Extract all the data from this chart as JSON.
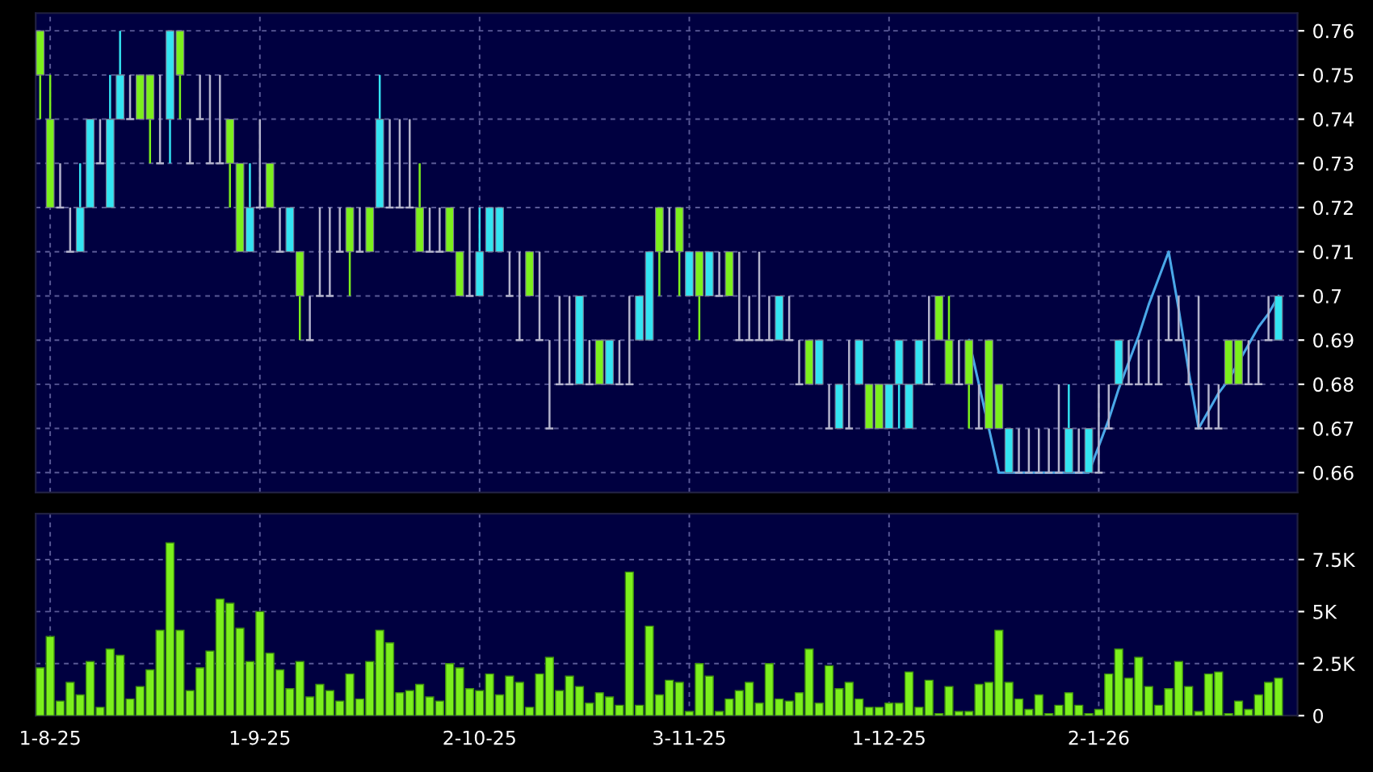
{
  "chart_data": [
    {
      "type": "candlestick",
      "categories": [
        null,
        null,
        null,
        null,
        null,
        null,
        null,
        null,
        null,
        null,
        null,
        null,
        null,
        null,
        null,
        null,
        null,
        null,
        null,
        null,
        null,
        null,
        null,
        null,
        null,
        null,
        null,
        null,
        null,
        null,
        null,
        null,
        null,
        null,
        null,
        null,
        null,
        null,
        null,
        null,
        null,
        null,
        null,
        null,
        null,
        null,
        null,
        null,
        null,
        null,
        null,
        null,
        null,
        null,
        null,
        null,
        null,
        null,
        null,
        null,
        null,
        null,
        null,
        null,
        null,
        null,
        null,
        null,
        null,
        null,
        null,
        null,
        null,
        null,
        null,
        null,
        null,
        null,
        null,
        null,
        null,
        null,
        null,
        null,
        null,
        null,
        null,
        null,
        null,
        null,
        null,
        null,
        null,
        null,
        null,
        null,
        null,
        null,
        null,
        null,
        null,
        null,
        null,
        null,
        null,
        null,
        null,
        null,
        null,
        null,
        null,
        null,
        null,
        null,
        null,
        null,
        null,
        null,
        null,
        null,
        null,
        null,
        null,
        null,
        null
      ],
      "ohlc": [
        [
          0.75,
          0.76,
          0.74,
          0.76
        ],
        [
          0.72,
          0.75,
          0.72,
          0.74
        ],
        [
          0.72,
          0.73,
          0.72,
          0.72
        ],
        [
          0.71,
          0.72,
          0.71,
          0.71
        ],
        [
          0.72,
          0.73,
          0.71,
          0.71
        ],
        [
          0.74,
          0.74,
          0.72,
          0.72
        ],
        [
          0.73,
          0.74,
          0.73,
          0.73
        ],
        [
          0.74,
          0.75,
          0.72,
          0.72
        ],
        [
          0.75,
          0.76,
          0.74,
          0.74
        ],
        [
          0.74,
          0.75,
          0.74,
          0.74
        ],
        [
          0.74,
          0.75,
          0.74,
          0.75
        ],
        [
          0.74,
          0.75,
          0.73,
          0.75
        ],
        [
          0.73,
          0.75,
          0.73,
          0.73
        ],
        [
          0.76,
          0.76,
          0.73,
          0.74
        ],
        [
          0.75,
          0.76,
          0.74,
          0.76
        ],
        [
          0.73,
          0.74,
          0.73,
          0.73
        ],
        [
          0.74,
          0.75,
          0.74,
          0.74
        ],
        [
          0.73,
          0.75,
          0.73,
          0.73
        ],
        [
          0.73,
          0.75,
          0.73,
          0.73
        ],
        [
          0.73,
          0.74,
          0.72,
          0.74
        ],
        [
          0.71,
          0.73,
          0.71,
          0.73
        ],
        [
          0.72,
          0.73,
          0.71,
          0.71
        ],
        [
          0.72,
          0.74,
          0.72,
          0.72
        ],
        [
          0.72,
          0.73,
          0.72,
          0.73
        ],
        [
          0.71,
          0.72,
          0.71,
          0.71
        ],
        [
          0.72,
          0.72,
          0.71,
          0.71
        ],
        [
          0.7,
          0.71,
          0.69,
          0.71
        ],
        [
          0.69,
          0.7,
          0.69,
          0.69
        ],
        [
          0.7,
          0.72,
          0.7,
          0.7
        ],
        [
          0.7,
          0.72,
          0.7,
          0.7
        ],
        [
          0.71,
          0.72,
          0.71,
          0.71
        ],
        [
          0.71,
          0.72,
          0.7,
          0.72
        ],
        [
          0.71,
          0.72,
          0.71,
          0.71
        ],
        [
          0.71,
          0.72,
          0.71,
          0.72
        ],
        [
          0.74,
          0.75,
          0.72,
          0.72
        ],
        [
          0.72,
          0.74,
          0.72,
          0.72
        ],
        [
          0.72,
          0.74,
          0.72,
          0.72
        ],
        [
          0.72,
          0.74,
          0.72,
          0.72
        ],
        [
          0.71,
          0.73,
          0.71,
          0.72
        ],
        [
          0.71,
          0.72,
          0.71,
          0.71
        ],
        [
          0.71,
          0.72,
          0.71,
          0.71
        ],
        [
          0.71,
          0.72,
          0.71,
          0.72
        ],
        [
          0.7,
          0.71,
          0.7,
          0.71
        ],
        [
          0.7,
          0.72,
          0.7,
          0.7
        ],
        [
          0.71,
          0.72,
          0.7,
          0.7
        ],
        [
          0.72,
          0.72,
          0.71,
          0.71
        ],
        [
          0.72,
          0.72,
          0.71,
          0.71
        ],
        [
          0.7,
          0.71,
          0.7,
          0.7
        ],
        [
          0.69,
          0.71,
          0.69,
          0.69
        ],
        [
          0.7,
          0.71,
          0.7,
          0.71
        ],
        [
          0.69,
          0.71,
          0.69,
          0.69
        ],
        [
          0.67,
          0.69,
          0.67,
          0.67
        ],
        [
          0.68,
          0.7,
          0.68,
          0.68
        ],
        [
          0.68,
          0.7,
          0.68,
          0.68
        ],
        [
          0.7,
          0.7,
          0.68,
          0.68
        ],
        [
          0.68,
          0.69,
          0.68,
          0.68
        ],
        [
          0.68,
          0.69,
          0.68,
          0.69
        ],
        [
          0.69,
          0.69,
          0.68,
          0.68
        ],
        [
          0.68,
          0.69,
          0.68,
          0.68
        ],
        [
          0.68,
          0.7,
          0.68,
          0.68
        ],
        [
          0.7,
          0.7,
          0.69,
          0.69
        ],
        [
          0.71,
          0.71,
          0.69,
          0.69
        ],
        [
          0.71,
          0.72,
          0.7,
          0.72
        ],
        [
          0.71,
          0.72,
          0.71,
          0.71
        ],
        [
          0.71,
          0.72,
          0.7,
          0.72
        ],
        [
          0.71,
          0.71,
          0.7,
          0.7
        ],
        [
          0.7,
          0.71,
          0.69,
          0.71
        ],
        [
          0.71,
          0.71,
          0.7,
          0.7
        ],
        [
          0.7,
          0.71,
          0.7,
          0.7
        ],
        [
          0.7,
          0.71,
          0.7,
          0.71
        ],
        [
          0.69,
          0.71,
          0.69,
          0.69
        ],
        [
          0.69,
          0.7,
          0.69,
          0.69
        ],
        [
          0.69,
          0.71,
          0.69,
          0.69
        ],
        [
          0.69,
          0.7,
          0.69,
          0.69
        ],
        [
          0.7,
          0.7,
          0.69,
          0.69
        ],
        [
          0.69,
          0.7,
          0.69,
          0.69
        ],
        [
          0.68,
          0.69,
          0.68,
          0.68
        ],
        [
          0.68,
          0.69,
          0.68,
          0.69
        ],
        [
          0.69,
          0.69,
          0.68,
          0.68
        ],
        [
          0.67,
          0.68,
          0.67,
          0.67
        ],
        [
          0.68,
          0.68,
          0.67,
          0.67
        ],
        [
          0.67,
          0.69,
          0.67,
          0.67
        ],
        [
          0.69,
          0.69,
          0.68,
          0.68
        ],
        [
          0.67,
          0.68,
          0.67,
          0.68
        ],
        [
          0.67,
          0.68,
          0.67,
          0.68
        ],
        [
          0.68,
          0.68,
          0.67,
          0.67
        ],
        [
          0.69,
          0.69,
          0.67,
          0.68
        ],
        [
          0.68,
          0.68,
          0.67,
          0.67
        ],
        [
          0.69,
          0.69,
          0.68,
          0.68
        ],
        [
          0.68,
          0.7,
          0.68,
          0.68
        ],
        [
          0.69,
          0.7,
          0.69,
          0.7
        ],
        [
          0.68,
          0.7,
          0.68,
          0.69
        ],
        [
          0.68,
          0.69,
          0.68,
          0.68
        ],
        [
          0.68,
          0.69,
          0.67,
          0.69
        ],
        [
          0.67,
          0.68,
          0.67,
          0.67
        ],
        [
          0.67,
          0.69,
          0.67,
          0.69
        ],
        [
          0.67,
          0.68,
          0.67,
          0.68
        ],
        [
          0.67,
          0.67,
          0.66,
          0.66
        ],
        [
          0.66,
          0.67,
          0.66,
          0.66
        ],
        [
          0.66,
          0.67,
          0.66,
          0.66
        ],
        [
          0.66,
          0.67,
          0.66,
          0.66
        ],
        [
          0.66,
          0.67,
          0.66,
          0.66
        ],
        [
          0.66,
          0.68,
          0.66,
          0.66
        ],
        [
          0.67,
          0.68,
          0.66,
          0.66
        ],
        [
          0.66,
          0.67,
          0.66,
          0.66
        ],
        [
          0.67,
          0.67,
          0.66,
          0.66
        ],
        [
          0.66,
          0.68,
          0.66,
          0.66
        ],
        [
          0.67,
          0.68,
          0.67,
          0.67
        ],
        [
          0.69,
          0.69,
          0.68,
          0.68
        ],
        [
          0.68,
          0.69,
          0.68,
          0.68
        ],
        [
          0.68,
          0.69,
          0.68,
          0.68
        ],
        [
          0.68,
          0.69,
          0.68,
          0.68
        ],
        [
          0.68,
          0.7,
          0.68,
          0.68
        ],
        [
          0.69,
          0.7,
          0.69,
          0.69
        ],
        [
          0.69,
          0.7,
          0.69,
          0.69
        ],
        [
          0.68,
          0.69,
          0.68,
          0.68
        ],
        [
          0.67,
          0.7,
          0.67,
          0.67
        ],
        [
          0.67,
          0.68,
          0.67,
          0.67
        ],
        [
          0.67,
          0.68,
          0.67,
          0.67
        ],
        [
          0.68,
          0.69,
          0.68,
          0.69
        ],
        [
          0.68,
          0.69,
          0.68,
          0.69
        ],
        [
          0.68,
          0.69,
          0.68,
          0.68
        ],
        [
          0.68,
          0.69,
          0.68,
          0.68
        ],
        [
          0.69,
          0.7,
          0.69,
          0.69
        ],
        [
          0.7,
          0.7,
          0.69,
          0.69
        ]
      ],
      "colors": [
        "#7cf01c",
        "#7cf01c",
        "#b4b4cc",
        "#b4b4cc",
        "#33e4f2",
        "#33e4f2",
        "#b4b4cc",
        "#33e4f2",
        "#33e4f2",
        "#b4b4cc",
        "#7cf01c",
        "#7cf01c",
        "#b4b4cc",
        "#33e4f2",
        "#7cf01c",
        "#b4b4cc",
        "#b4b4cc",
        "#b4b4cc",
        "#b4b4cc",
        "#7cf01c",
        "#7cf01c",
        "#33e4f2",
        "#b4b4cc",
        "#7cf01c",
        "#b4b4cc",
        "#33e4f2",
        "#7cf01c",
        "#b4b4cc",
        "#b4b4cc",
        "#b4b4cc",
        "#b4b4cc",
        "#7cf01c",
        "#b4b4cc",
        "#7cf01c",
        "#33e4f2",
        "#b4b4cc",
        "#b4b4cc",
        "#b4b4cc",
        "#7cf01c",
        "#b4b4cc",
        "#b4b4cc",
        "#7cf01c",
        "#7cf01c",
        "#b4b4cc",
        "#33e4f2",
        "#33e4f2",
        "#33e4f2",
        "#b4b4cc",
        "#b4b4cc",
        "#7cf01c",
        "#b4b4cc",
        "#b4b4cc",
        "#b4b4cc",
        "#b4b4cc",
        "#33e4f2",
        "#b4b4cc",
        "#7cf01c",
        "#33e4f2",
        "#b4b4cc",
        "#b4b4cc",
        "#33e4f2",
        "#33e4f2",
        "#7cf01c",
        "#b4b4cc",
        "#7cf01c",
        "#33e4f2",
        "#7cf01c",
        "#33e4f2",
        "#b4b4cc",
        "#7cf01c",
        "#b4b4cc",
        "#b4b4cc",
        "#b4b4cc",
        "#b4b4cc",
        "#33e4f2",
        "#b4b4cc",
        "#b4b4cc",
        "#7cf01c",
        "#33e4f2",
        "#b4b4cc",
        "#33e4f2",
        "#b4b4cc",
        "#33e4f2",
        "#7cf01c",
        "#7cf01c",
        "#33e4f2",
        "#33e4f2",
        "#33e4f2",
        "#33e4f2",
        "#b4b4cc",
        "#7cf01c",
        "#7cf01c",
        "#b4b4cc",
        "#7cf01c",
        "#b4b4cc",
        "#7cf01c",
        "#7cf01c",
        "#33e4f2",
        "#b4b4cc",
        "#b4b4cc",
        "#b4b4cc",
        "#b4b4cc",
        "#b4b4cc",
        "#33e4f2",
        "#b4b4cc",
        "#33e4f2",
        "#b4b4cc",
        "#b4b4cc",
        "#33e4f2",
        "#b4b4cc",
        "#b4b4cc",
        "#b4b4cc",
        "#b4b4cc",
        "#b4b4cc",
        "#b4b4cc",
        "#b4b4cc",
        "#b4b4cc",
        "#b4b4cc",
        "#b4b4cc",
        "#7cf01c",
        "#7cf01c",
        "#b4b4cc",
        "#b4b4cc",
        "#b4b4cc",
        "#33e4f2"
      ],
      "series": [
        {
          "type": "line",
          "color": "#4aa8e8",
          "values": [
            null,
            null,
            null,
            null,
            null,
            null,
            null,
            null,
            null,
            null,
            null,
            null,
            null,
            null,
            null,
            null,
            null,
            null,
            null,
            null,
            null,
            null,
            null,
            null,
            null,
            null,
            null,
            null,
            null,
            null,
            null,
            null,
            null,
            null,
            null,
            null,
            null,
            null,
            null,
            null,
            null,
            null,
            null,
            null,
            null,
            null,
            null,
            null,
            null,
            null,
            null,
            null,
            null,
            null,
            null,
            null,
            null,
            null,
            null,
            null,
            null,
            null,
            null,
            null,
            null,
            null,
            null,
            null,
            null,
            null,
            null,
            null,
            null,
            null,
            null,
            null,
            null,
            null,
            null,
            null,
            null,
            null,
            null,
            null,
            null,
            null,
            null,
            null,
            null,
            null,
            null,
            null,
            null,
            0.69,
            0.68,
            0.67,
            0.66,
            0.66,
            0.66,
            0.66,
            0.66,
            0.66,
            0.66,
            0.66,
            0.66,
            0.66,
            0.666,
            0.672,
            0.679,
            0.685,
            0.691,
            0.698,
            0.704,
            0.71,
            0.697,
            0.683,
            0.67,
            0.674,
            0.678,
            0.681,
            0.685,
            0.689,
            0.693,
            0.696,
            0.7
          ]
        }
      ],
      "ylim": [
        0.6555,
        0.764
      ],
      "yticks": [
        0.66,
        0.67,
        0.68,
        0.69,
        0.7,
        0.71,
        0.72,
        0.73,
        0.74,
        0.75,
        0.76
      ],
      "grid": true,
      "tick_labels": "y"
    },
    {
      "type": "bar",
      "categories": [
        null,
        "1-8-25",
        null,
        null,
        null,
        null,
        null,
        null,
        null,
        null,
        null,
        null,
        null,
        null,
        null,
        null,
        null,
        null,
        null,
        null,
        null,
        null,
        "1-9-25",
        null,
        null,
        null,
        null,
        null,
        null,
        null,
        null,
        null,
        null,
        null,
        null,
        null,
        null,
        null,
        null,
        null,
        null,
        null,
        null,
        null,
        "2-10-25",
        null,
        null,
        null,
        null,
        null,
        null,
        null,
        null,
        null,
        null,
        null,
        null,
        null,
        null,
        null,
        null,
        null,
        null,
        null,
        null,
        "3-11-25",
        null,
        null,
        null,
        null,
        null,
        null,
        null,
        null,
        null,
        null,
        null,
        null,
        null,
        null,
        null,
        null,
        null,
        null,
        null,
        "1-12-25",
        null,
        null,
        null,
        null,
        null,
        null,
        null,
        null,
        null,
        null,
        null,
        null,
        null,
        null,
        null,
        null,
        null,
        null,
        null,
        null,
        "2-1-26",
        null,
        null,
        null,
        null,
        null,
        null,
        null,
        null,
        null,
        null,
        null,
        null,
        null,
        null,
        null,
        null,
        null,
        null
      ],
      "values": [
        2300,
        3800,
        700,
        1600,
        1000,
        2600,
        400,
        3200,
        2900,
        800,
        1400,
        2200,
        4100,
        8300,
        4100,
        1200,
        2300,
        3100,
        5600,
        5400,
        4200,
        2600,
        5000,
        3000,
        2200,
        1300,
        2600,
        900,
        1500,
        1200,
        700,
        2000,
        800,
        2600,
        4100,
        3500,
        1100,
        1200,
        1500,
        900,
        700,
        2500,
        2300,
        1300,
        1200,
        2000,
        1000,
        1900,
        1600,
        400,
        2000,
        2800,
        1200,
        1900,
        1400,
        600,
        1100,
        900,
        500,
        6900,
        500,
        4300,
        1000,
        1700,
        1600,
        200,
        2500,
        1900,
        200,
        800,
        1200,
        1600,
        600,
        2500,
        800,
        700,
        1100,
        3200,
        600,
        2400,
        1300,
        1600,
        800,
        400,
        400,
        600,
        600,
        2100,
        400,
        1700,
        100,
        1400,
        200,
        200,
        1500,
        1600,
        4100,
        1600,
        800,
        300,
        1000,
        100,
        500,
        1100,
        500,
        100,
        300,
        2000,
        3200,
        1800,
        2800,
        1400,
        500,
        1300,
        2600,
        1400,
        200,
        2000,
        2100,
        100,
        700,
        300,
        1000,
        1600,
        1800
      ],
      "color": "#7cf01c",
      "ylim": [
        0,
        9700
      ],
      "yticks": [
        0,
        {
          "value": 2500,
          "label": "2.5K"
        },
        {
          "value": 5000,
          "label": "5K"
        },
        {
          "value": 7500,
          "label": "7.5K"
        }
      ],
      "grid": true
    }
  ]
}
